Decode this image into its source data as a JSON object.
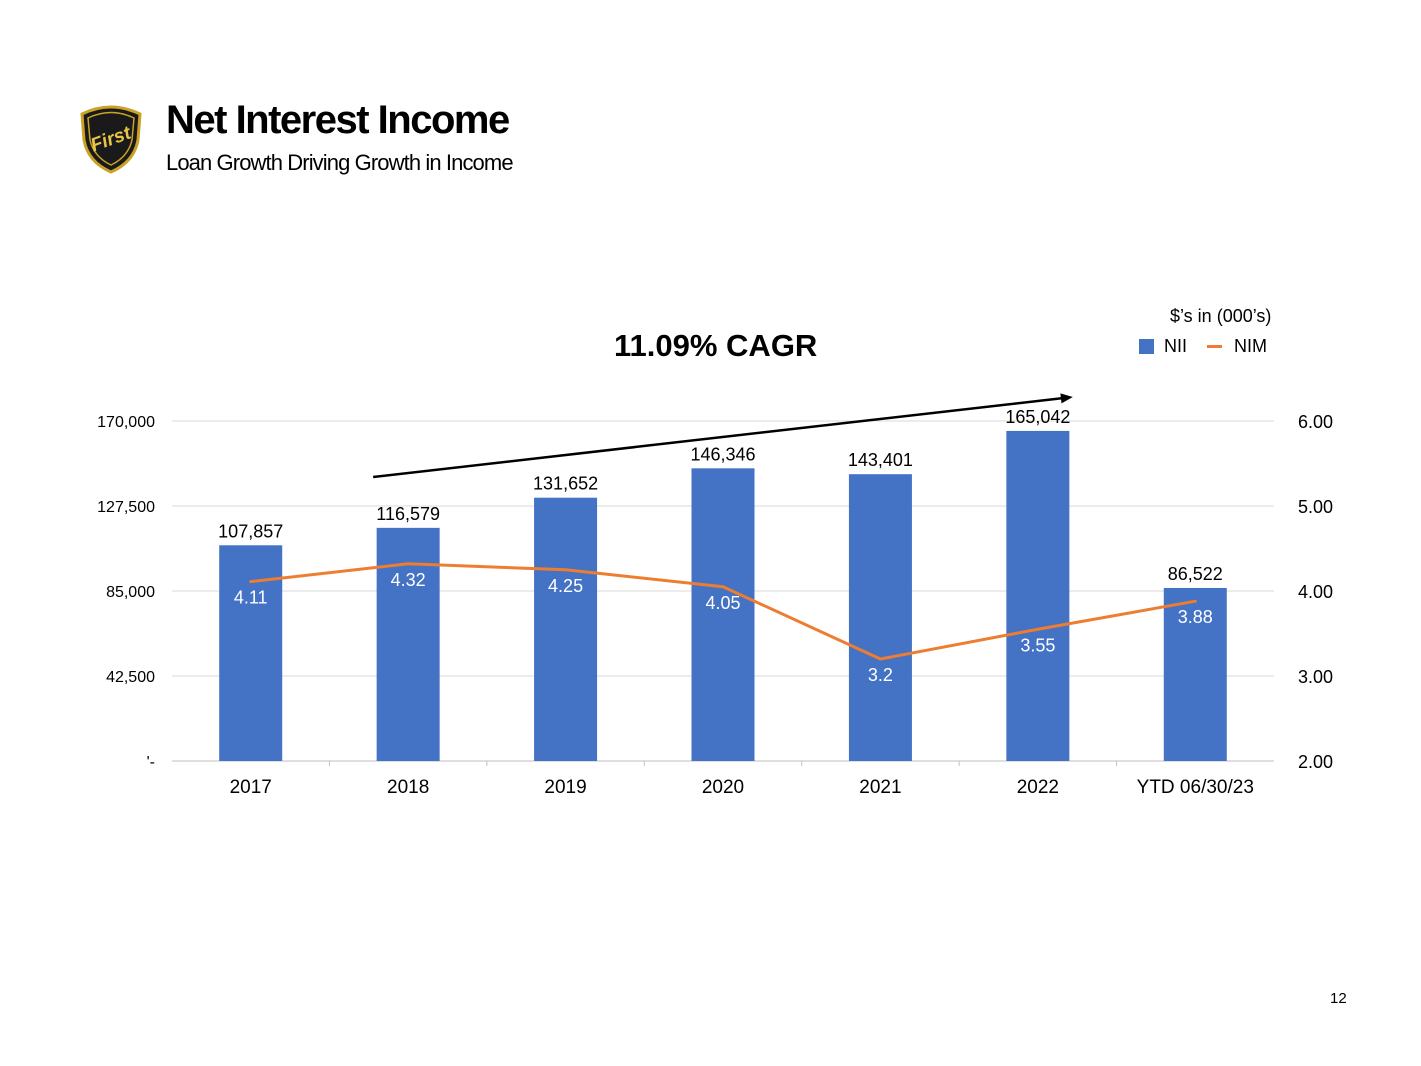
{
  "header": {
    "title": "Net Interest Income",
    "subtitle": "Loan Growth Driving Growth in Income",
    "logo_text": "First"
  },
  "annotation": {
    "cagr": "11.09% CAGR",
    "units": "$’s in (000’s)"
  },
  "legend": {
    "bar_label": "NII",
    "line_label": "NIM"
  },
  "page_number": "12",
  "colors": {
    "bar": "#4472c4",
    "line": "#ed7d31",
    "grid": "#d9d9d9"
  },
  "chart_data": {
    "type": "bar",
    "title": "11.09% CAGR",
    "categories": [
      "2017",
      "2018",
      "2019",
      "2020",
      "2021",
      "2022",
      "YTD 06/30/23"
    ],
    "series": [
      {
        "name": "NII",
        "type": "bar",
        "axis": "left",
        "values": [
          107857,
          116579,
          131652,
          146346,
          143401,
          165042,
          86522
        ],
        "labels": [
          "107,857",
          "116,579",
          "131,652",
          "146,346",
          "143,401",
          "165,042",
          "86,522"
        ]
      },
      {
        "name": "NIM",
        "type": "line",
        "axis": "right",
        "values": [
          4.11,
          4.32,
          4.25,
          4.05,
          3.2,
          3.55,
          3.88
        ],
        "labels": [
          "4.11",
          "4.32",
          "4.25",
          "4.05",
          "3.2",
          "3.55",
          "3.88"
        ]
      }
    ],
    "y_left": {
      "ylim": [
        0,
        170000
      ],
      "ticks": [
        0,
        42500,
        85000,
        127500,
        170000
      ],
      "tick_labels": [
        "'-",
        "42,500",
        "85,000",
        "127,500",
        "170,000"
      ]
    },
    "y_right": {
      "ylim": [
        2.0,
        6.0
      ],
      "ticks": [
        2,
        3,
        4,
        5,
        6
      ],
      "tick_labels": [
        "2.00",
        "3.00",
        "4.00",
        "5.00",
        "6.00"
      ]
    },
    "grid": true,
    "legend_position": "top-right",
    "trend_arrow": {
      "from_category": "2018",
      "to_category": "2022"
    }
  }
}
